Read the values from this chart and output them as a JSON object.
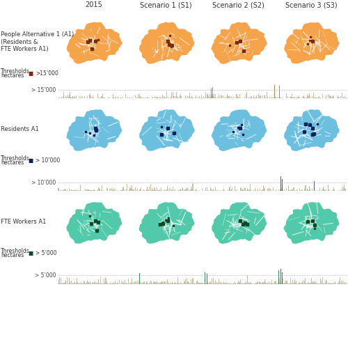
{
  "col_headers": [
    "2015",
    "Scenario 1 (S1)",
    "Scenario 2 (S2)",
    "Scenario 3 (S3)"
  ],
  "row_labels": [
    "People Alternative 1 (A1)\n(Residents &\nFTE Workers A1)",
    "Residents A1",
    "FTE Workers A1"
  ],
  "threshold_text_labels": [
    "> 15’000",
    "> 10’000",
    "> 5’000"
  ],
  "threshold_legend_labels": [
    ">15’000",
    "> 10’000",
    "> 5’000"
  ],
  "map_colors": [
    "#f5a44b",
    "#6dbfdf",
    "#52c9a8"
  ],
  "highlight_colors": [
    "#7a2c08",
    "#0d1f5c",
    "#0d4a2a"
  ],
  "bar_base_color": "#c8bfa8",
  "bar_highlight_colors": [
    "#b8864a",
    "#3a60a0",
    "#2a9060"
  ],
  "figure_bg": "#ffffff",
  "label_fontsize": 6.0,
  "header_fontsize": 7.0,
  "small_fontsize": 5.5
}
